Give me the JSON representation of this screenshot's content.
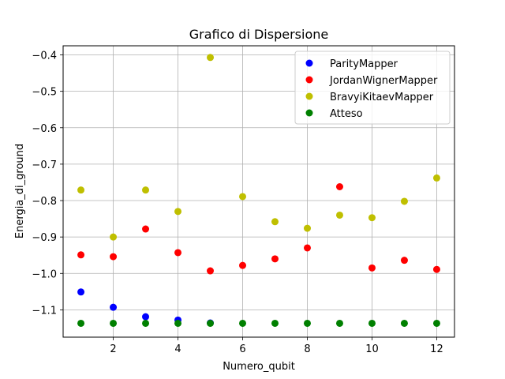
{
  "chart_data": {
    "type": "scatter",
    "title": "Grafico di Dispersione",
    "xlabel": "Numero_qubit",
    "ylabel": "Energia_di_ground",
    "xlim": [
      0.45,
      12.55
    ],
    "ylim": [
      -1.175,
      -0.375
    ],
    "xticks": [
      2,
      4,
      6,
      8,
      10,
      12
    ],
    "xtick_labels": [
      "2",
      "4",
      "6",
      "8",
      "10",
      "12"
    ],
    "yticks": [
      -1.1,
      -1.0,
      -0.9,
      -0.8,
      -0.7,
      -0.6,
      -0.5,
      -0.4
    ],
    "ytick_labels": [
      "−1.1",
      "−1.0",
      "−0.9",
      "−0.8",
      "−0.7",
      "−0.6",
      "−0.5",
      "−0.4"
    ],
    "grid": true,
    "legend_position": "top-right",
    "series": [
      {
        "name": "ParityMapper",
        "color": "#0000ff",
        "x": [
          1,
          2,
          3,
          4,
          5
        ],
        "y": [
          -1.051,
          -1.093,
          -1.119,
          -1.128,
          -1.136
        ]
      },
      {
        "name": "JordanWignerMapper",
        "color": "#ff0000",
        "x": [
          1,
          2,
          3,
          4,
          5,
          6,
          7,
          8,
          9,
          10,
          11,
          12
        ],
        "y": [
          -0.949,
          -0.954,
          -0.878,
          -0.943,
          -0.993,
          -0.978,
          -0.96,
          -0.93,
          -0.762,
          -0.985,
          -0.964,
          -0.989
        ]
      },
      {
        "name": "BravyiKitaevMapper",
        "color": "#bfbf00",
        "x": [
          1,
          2,
          3,
          4,
          5,
          6,
          7,
          8,
          9,
          10,
          11,
          12
        ],
        "y": [
          -0.771,
          -0.9,
          -0.771,
          -0.83,
          -0.407,
          -0.789,
          -0.858,
          -0.876,
          -0.84,
          -0.847,
          -0.802,
          -0.738
        ]
      },
      {
        "name": "Atteso",
        "color": "#008000",
        "x": [
          1,
          2,
          3,
          4,
          5,
          6,
          7,
          8,
          9,
          10,
          11,
          12
        ],
        "y": [
          -1.137,
          -1.137,
          -1.137,
          -1.137,
          -1.137,
          -1.137,
          -1.137,
          -1.137,
          -1.137,
          -1.137,
          -1.137,
          -1.137
        ]
      }
    ]
  }
}
